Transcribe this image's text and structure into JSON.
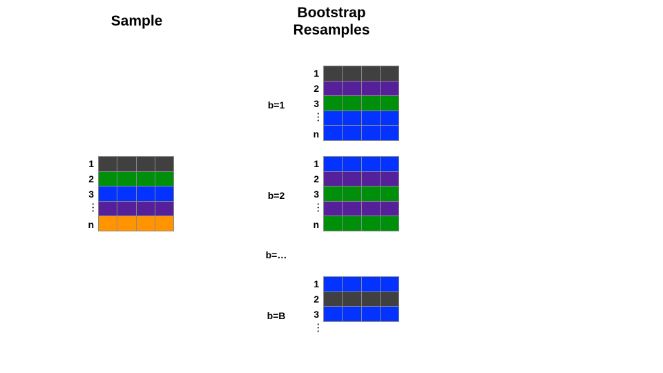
{
  "titles": {
    "sample": "Sample",
    "resample_line1": "Bootstrap",
    "resample_line2": "Resamples"
  },
  "colors": {
    "gray": "#404040",
    "purple": "#56209a",
    "green": "#008f0a",
    "blue": "#0433ff",
    "orange": "#ff9300"
  },
  "row_labels": [
    "1",
    "2",
    "3",
    "⋮",
    "n"
  ],
  "sample": {
    "rows": [
      "gray",
      "green",
      "blue",
      "purple",
      "orange"
    ]
  },
  "resamples": [
    {
      "label": "b=1",
      "rows": [
        "gray",
        "purple",
        "green",
        "blue",
        "blue"
      ]
    },
    {
      "label": "b=2",
      "rows": [
        "blue",
        "purple",
        "green",
        "purple",
        "green"
      ]
    },
    {
      "label": "b=…",
      "rows": []
    },
    {
      "label": "b=B",
      "row_labels": [
        "1",
        "2",
        "3",
        "⋮"
      ],
      "rows": [
        "blue",
        "gray",
        "blue"
      ]
    }
  ]
}
